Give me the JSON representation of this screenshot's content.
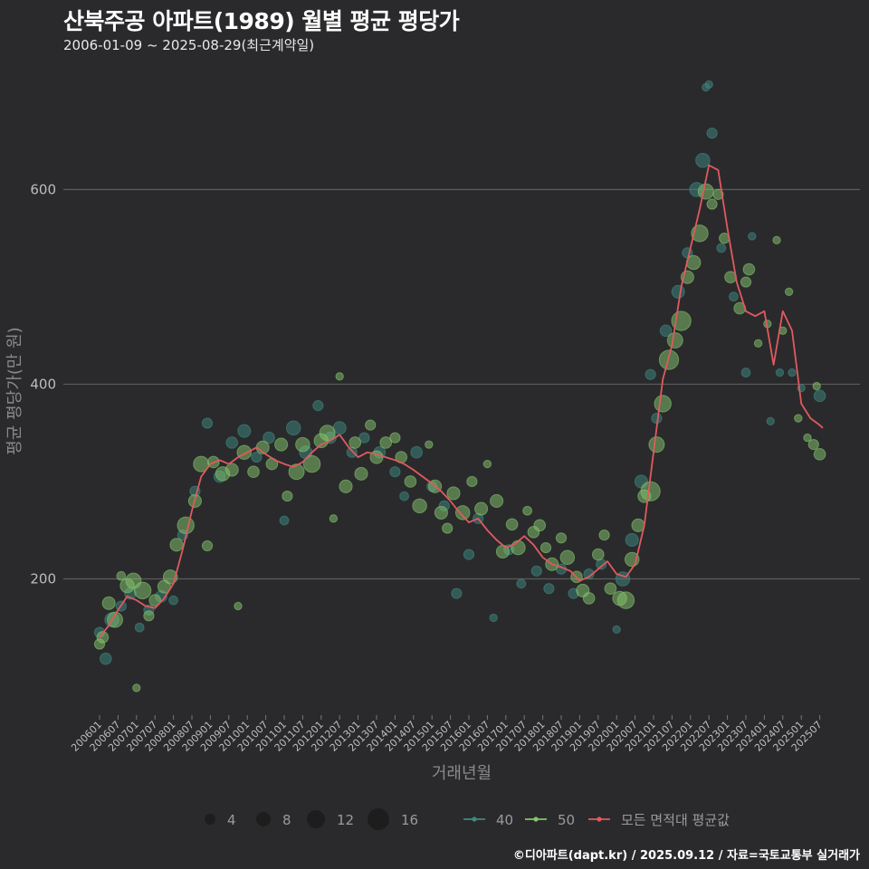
{
  "title": "산북주공 아파트(1989) 월별 평균 평당가",
  "subtitle": "2006-01-09 ~ 2025-08-29(최근계약일)",
  "credit": "©디아파트(dapt.kr) / 2025.09.12 / 자료=국토교통부 실거래가",
  "colors": {
    "background": "#2a2a2c",
    "grid": "#5c5c5c",
    "area40": "#3d8a82",
    "area50": "#86c56e",
    "avg_line": "#e05a5f"
  },
  "chart_data": {
    "type": "scatter+line",
    "xlabel": "거래년월",
    "ylabel": "평균 평당가(만 원)",
    "ylim": [
      60,
      725
    ],
    "yticks": [
      200,
      400,
      600
    ],
    "x_start": "2006-01",
    "x_end": "2025-08",
    "xticks": [
      "200601",
      "200607",
      "200701",
      "200707",
      "200801",
      "200807",
      "200901",
      "200907",
      "201001",
      "201007",
      "201101",
      "201107",
      "201201",
      "201207",
      "201301",
      "201307",
      "201401",
      "201407",
      "201501",
      "201507",
      "201601",
      "201607",
      "201701",
      "201707",
      "201801",
      "201807",
      "201901",
      "201907",
      "202001",
      "202007",
      "202101",
      "202107",
      "202201",
      "202207",
      "202301",
      "202307",
      "202401",
      "202407",
      "202501",
      "202507"
    ],
    "legend": {
      "size_title": "",
      "sizes": [
        4,
        8,
        12,
        16
      ],
      "area_items": [
        {
          "label": "40",
          "color": "#3d8a82"
        },
        {
          "label": "50",
          "color": "#86c56e"
        },
        {
          "label": "모든 면적대 평균값",
          "color": "#e05a5f"
        }
      ]
    },
    "avg_series": {
      "name": "모든 면적대 평균값",
      "x": [
        "2006-01",
        "2006-04",
        "2006-07",
        "2006-10",
        "2007-01",
        "2007-04",
        "2007-07",
        "2007-10",
        "2008-01",
        "2008-04",
        "2008-07",
        "2008-10",
        "2009-01",
        "2009-04",
        "2009-07",
        "2009-10",
        "2010-01",
        "2010-04",
        "2010-07",
        "2010-10",
        "2011-01",
        "2011-04",
        "2011-07",
        "2011-10",
        "2012-01",
        "2012-04",
        "2012-07",
        "2012-10",
        "2013-01",
        "2013-04",
        "2013-07",
        "2013-10",
        "2014-01",
        "2014-04",
        "2014-07",
        "2014-10",
        "2015-01",
        "2015-04",
        "2015-07",
        "2015-10",
        "2016-01",
        "2016-04",
        "2016-07",
        "2016-10",
        "2017-01",
        "2017-04",
        "2017-07",
        "2017-10",
        "2018-01",
        "2018-04",
        "2018-07",
        "2018-10",
        "2019-01",
        "2019-04",
        "2019-07",
        "2019-10",
        "2020-01",
        "2020-04",
        "2020-07",
        "2020-10",
        "2021-01",
        "2021-04",
        "2021-07",
        "2021-10",
        "2022-01",
        "2022-04",
        "2022-07",
        "2022-10",
        "2023-01",
        "2023-04",
        "2023-07",
        "2023-10",
        "2024-01",
        "2024-04",
        "2024-07",
        "2024-10",
        "2025-01",
        "2025-04",
        "2025-07",
        "2025-08"
      ],
      "values": [
        140,
        152,
        168,
        182,
        178,
        172,
        170,
        180,
        195,
        230,
        270,
        305,
        318,
        322,
        318,
        325,
        330,
        335,
        328,
        322,
        318,
        315,
        320,
        330,
        338,
        342,
        348,
        335,
        325,
        330,
        328,
        325,
        322,
        318,
        312,
        305,
        298,
        290,
        280,
        268,
        258,
        262,
        250,
        240,
        232,
        236,
        244,
        235,
        222,
        215,
        212,
        208,
        198,
        202,
        210,
        218,
        205,
        202,
        215,
        255,
        330,
        405,
        440,
        500,
        540,
        580,
        625,
        620,
        560,
        505,
        475,
        470,
        475,
        420,
        475,
        455,
        380,
        365,
        358,
        355
      ]
    },
    "size_scale": "number of transactions (4–16)",
    "points_area40": [
      {
        "x": "2006-01",
        "y": 145,
        "n": 5
      },
      {
        "x": "2006-03",
        "y": 118,
        "n": 6
      },
      {
        "x": "2006-05",
        "y": 158,
        "n": 8
      },
      {
        "x": "2006-08",
        "y": 172,
        "n": 5
      },
      {
        "x": "2006-11",
        "y": 185,
        "n": 6
      },
      {
        "x": "2007-02",
        "y": 150,
        "n": 4
      },
      {
        "x": "2007-05",
        "y": 168,
        "n": 5
      },
      {
        "x": "2007-09",
        "y": 182,
        "n": 6
      },
      {
        "x": "2008-01",
        "y": 178,
        "n": 4
      },
      {
        "x": "2008-04",
        "y": 245,
        "n": 5
      },
      {
        "x": "2008-08",
        "y": 290,
        "n": 5
      },
      {
        "x": "2008-12",
        "y": 360,
        "n": 5
      },
      {
        "x": "2009-04",
        "y": 305,
        "n": 6
      },
      {
        "x": "2009-08",
        "y": 340,
        "n": 6
      },
      {
        "x": "2009-12",
        "y": 352,
        "n": 7
      },
      {
        "x": "2010-04",
        "y": 325,
        "n": 5
      },
      {
        "x": "2010-08",
        "y": 345,
        "n": 6
      },
      {
        "x": "2011-01",
        "y": 260,
        "n": 4
      },
      {
        "x": "2011-04",
        "y": 355,
        "n": 8
      },
      {
        "x": "2011-08",
        "y": 330,
        "n": 7
      },
      {
        "x": "2011-12",
        "y": 378,
        "n": 5
      },
      {
        "x": "2012-04",
        "y": 345,
        "n": 6
      },
      {
        "x": "2012-07",
        "y": 355,
        "n": 7
      },
      {
        "x": "2012-11",
        "y": 330,
        "n": 5
      },
      {
        "x": "2013-03",
        "y": 345,
        "n": 5
      },
      {
        "x": "2013-08",
        "y": 330,
        "n": 6
      },
      {
        "x": "2014-01",
        "y": 310,
        "n": 5
      },
      {
        "x": "2014-04",
        "y": 285,
        "n": 4
      },
      {
        "x": "2014-08",
        "y": 330,
        "n": 6
      },
      {
        "x": "2015-01",
        "y": 295,
        "n": 5
      },
      {
        "x": "2015-05",
        "y": 275,
        "n": 5
      },
      {
        "x": "2015-09",
        "y": 185,
        "n": 5
      },
      {
        "x": "2016-01",
        "y": 225,
        "n": 5
      },
      {
        "x": "2016-04",
        "y": 262,
        "n": 5
      },
      {
        "x": "2016-09",
        "y": 160,
        "n": 3
      },
      {
        "x": "2017-02",
        "y": 230,
        "n": 5
      },
      {
        "x": "2017-06",
        "y": 195,
        "n": 4
      },
      {
        "x": "2017-11",
        "y": 208,
        "n": 5
      },
      {
        "x": "2018-03",
        "y": 190,
        "n": 5
      },
      {
        "x": "2018-07",
        "y": 210,
        "n": 5
      },
      {
        "x": "2018-11",
        "y": 185,
        "n": 5
      },
      {
        "x": "2019-04",
        "y": 205,
        "n": 5
      },
      {
        "x": "2019-08",
        "y": 215,
        "n": 5
      },
      {
        "x": "2020-01",
        "y": 148,
        "n": 3
      },
      {
        "x": "2020-03",
        "y": 200,
        "n": 8
      },
      {
        "x": "2020-06",
        "y": 240,
        "n": 7
      },
      {
        "x": "2020-09",
        "y": 300,
        "n": 7
      },
      {
        "x": "2020-12",
        "y": 410,
        "n": 5
      },
      {
        "x": "2021-02",
        "y": 365,
        "n": 5
      },
      {
        "x": "2021-05",
        "y": 455,
        "n": 6
      },
      {
        "x": "2021-09",
        "y": 495,
        "n": 7
      },
      {
        "x": "2021-12",
        "y": 535,
        "n": 5
      },
      {
        "x": "2022-03",
        "y": 600,
        "n": 8
      },
      {
        "x": "2022-05",
        "y": 630,
        "n": 8
      },
      {
        "x": "2022-06",
        "y": 705,
        "n": 3
      },
      {
        "x": "2022-07",
        "y": 708,
        "n": 3
      },
      {
        "x": "2022-08",
        "y": 658,
        "n": 5
      },
      {
        "x": "2022-11",
        "y": 540,
        "n": 4
      },
      {
        "x": "2023-03",
        "y": 490,
        "n": 4
      },
      {
        "x": "2023-07",
        "y": 412,
        "n": 4
      },
      {
        "x": "2023-09",
        "y": 552,
        "n": 3
      },
      {
        "x": "2024-03",
        "y": 362,
        "n": 3
      },
      {
        "x": "2024-06",
        "y": 412,
        "n": 3
      },
      {
        "x": "2024-10",
        "y": 412,
        "n": 3
      },
      {
        "x": "2025-01",
        "y": 396,
        "n": 3
      },
      {
        "x": "2025-07",
        "y": 388,
        "n": 6
      }
    ],
    "points_area50": [
      {
        "x": "2006-01",
        "y": 133,
        "n": 5
      },
      {
        "x": "2006-02",
        "y": 140,
        "n": 6
      },
      {
        "x": "2006-04",
        "y": 175,
        "n": 7
      },
      {
        "x": "2006-06",
        "y": 158,
        "n": 9
      },
      {
        "x": "2006-08",
        "y": 203,
        "n": 4
      },
      {
        "x": "2006-10",
        "y": 193,
        "n": 8
      },
      {
        "x": "2006-12",
        "y": 198,
        "n": 9
      },
      {
        "x": "2007-01",
        "y": 88,
        "n": 3
      },
      {
        "x": "2007-03",
        "y": 188,
        "n": 10
      },
      {
        "x": "2007-05",
        "y": 162,
        "n": 5
      },
      {
        "x": "2007-07",
        "y": 178,
        "n": 6
      },
      {
        "x": "2007-10",
        "y": 192,
        "n": 7
      },
      {
        "x": "2007-12",
        "y": 202,
        "n": 8
      },
      {
        "x": "2008-02",
        "y": 235,
        "n": 7
      },
      {
        "x": "2008-05",
        "y": 255,
        "n": 10
      },
      {
        "x": "2008-08",
        "y": 280,
        "n": 7
      },
      {
        "x": "2008-10",
        "y": 318,
        "n": 9
      },
      {
        "x": "2008-12",
        "y": 234,
        "n": 5
      },
      {
        "x": "2009-02",
        "y": 320,
        "n": 6
      },
      {
        "x": "2009-05",
        "y": 308,
        "n": 8
      },
      {
        "x": "2009-08",
        "y": 312,
        "n": 7
      },
      {
        "x": "2009-10",
        "y": 172,
        "n": 3
      },
      {
        "x": "2009-12",
        "y": 330,
        "n": 8
      },
      {
        "x": "2010-03",
        "y": 310,
        "n": 6
      },
      {
        "x": "2010-06",
        "y": 335,
        "n": 7
      },
      {
        "x": "2010-09",
        "y": 318,
        "n": 6
      },
      {
        "x": "2010-12",
        "y": 338,
        "n": 7
      },
      {
        "x": "2011-02",
        "y": 285,
        "n": 5
      },
      {
        "x": "2011-05",
        "y": 310,
        "n": 9
      },
      {
        "x": "2011-07",
        "y": 338,
        "n": 8
      },
      {
        "x": "2011-10",
        "y": 318,
        "n": 10
      },
      {
        "x": "2012-01",
        "y": 342,
        "n": 8
      },
      {
        "x": "2012-03",
        "y": 350,
        "n": 9
      },
      {
        "x": "2012-05",
        "y": 262,
        "n": 3
      },
      {
        "x": "2012-07",
        "y": 408,
        "n": 3
      },
      {
        "x": "2012-09",
        "y": 295,
        "n": 7
      },
      {
        "x": "2012-12",
        "y": 340,
        "n": 6
      },
      {
        "x": "2013-02",
        "y": 308,
        "n": 7
      },
      {
        "x": "2013-05",
        "y": 358,
        "n": 5
      },
      {
        "x": "2013-07",
        "y": 325,
        "n": 7
      },
      {
        "x": "2013-10",
        "y": 340,
        "n": 6
      },
      {
        "x": "2014-01",
        "y": 345,
        "n": 5
      },
      {
        "x": "2014-03",
        "y": 325,
        "n": 6
      },
      {
        "x": "2014-06",
        "y": 300,
        "n": 6
      },
      {
        "x": "2014-09",
        "y": 275,
        "n": 8
      },
      {
        "x": "2014-12",
        "y": 338,
        "n": 3
      },
      {
        "x": "2015-02",
        "y": 295,
        "n": 7
      },
      {
        "x": "2015-04",
        "y": 268,
        "n": 7
      },
      {
        "x": "2015-06",
        "y": 252,
        "n": 5
      },
      {
        "x": "2015-08",
        "y": 288,
        "n": 7
      },
      {
        "x": "2015-11",
        "y": 268,
        "n": 8
      },
      {
        "x": "2016-02",
        "y": 300,
        "n": 5
      },
      {
        "x": "2016-05",
        "y": 272,
        "n": 7
      },
      {
        "x": "2016-07",
        "y": 318,
        "n": 3
      },
      {
        "x": "2016-10",
        "y": 280,
        "n": 7
      },
      {
        "x": "2016-12",
        "y": 228,
        "n": 7
      },
      {
        "x": "2017-03",
        "y": 256,
        "n": 6
      },
      {
        "x": "2017-05",
        "y": 232,
        "n": 8
      },
      {
        "x": "2017-08",
        "y": 270,
        "n": 4
      },
      {
        "x": "2017-10",
        "y": 248,
        "n": 6
      },
      {
        "x": "2017-12",
        "y": 255,
        "n": 6
      },
      {
        "x": "2018-02",
        "y": 232,
        "n": 5
      },
      {
        "x": "2018-04",
        "y": 215,
        "n": 7
      },
      {
        "x": "2018-07",
        "y": 242,
        "n": 5
      },
      {
        "x": "2018-09",
        "y": 222,
        "n": 8
      },
      {
        "x": "2018-12",
        "y": 202,
        "n": 6
      },
      {
        "x": "2019-02",
        "y": 188,
        "n": 7
      },
      {
        "x": "2019-04",
        "y": 180,
        "n": 6
      },
      {
        "x": "2019-07",
        "y": 225,
        "n": 6
      },
      {
        "x": "2019-09",
        "y": 245,
        "n": 5
      },
      {
        "x": "2019-11",
        "y": 190,
        "n": 6
      },
      {
        "x": "2020-02",
        "y": 180,
        "n": 8
      },
      {
        "x": "2020-04",
        "y": 178,
        "n": 10
      },
      {
        "x": "2020-06",
        "y": 220,
        "n": 8
      },
      {
        "x": "2020-08",
        "y": 255,
        "n": 7
      },
      {
        "x": "2020-10",
        "y": 285,
        "n": 7
      },
      {
        "x": "2020-12",
        "y": 290,
        "n": 12
      },
      {
        "x": "2021-02",
        "y": 338,
        "n": 9
      },
      {
        "x": "2021-04",
        "y": 380,
        "n": 10
      },
      {
        "x": "2021-06",
        "y": 425,
        "n": 12
      },
      {
        "x": "2021-08",
        "y": 445,
        "n": 9
      },
      {
        "x": "2021-10",
        "y": 465,
        "n": 12
      },
      {
        "x": "2021-12",
        "y": 510,
        "n": 7
      },
      {
        "x": "2022-02",
        "y": 525,
        "n": 8
      },
      {
        "x": "2022-04",
        "y": 555,
        "n": 10
      },
      {
        "x": "2022-06",
        "y": 598,
        "n": 9
      },
      {
        "x": "2022-08",
        "y": 585,
        "n": 5
      },
      {
        "x": "2022-10",
        "y": 595,
        "n": 5
      },
      {
        "x": "2022-12",
        "y": 550,
        "n": 5
      },
      {
        "x": "2023-02",
        "y": 510,
        "n": 6
      },
      {
        "x": "2023-05",
        "y": 478,
        "n": 6
      },
      {
        "x": "2023-07",
        "y": 505,
        "n": 5
      },
      {
        "x": "2023-08",
        "y": 518,
        "n": 6
      },
      {
        "x": "2023-11",
        "y": 442,
        "n": 3
      },
      {
        "x": "2024-02",
        "y": 462,
        "n": 3
      },
      {
        "x": "2024-05",
        "y": 548,
        "n": 3
      },
      {
        "x": "2024-07",
        "y": 455,
        "n": 3
      },
      {
        "x": "2024-09",
        "y": 495,
        "n": 3
      },
      {
        "x": "2024-12",
        "y": 365,
        "n": 3
      },
      {
        "x": "2025-03",
        "y": 345,
        "n": 3
      },
      {
        "x": "2025-05",
        "y": 338,
        "n": 5
      },
      {
        "x": "2025-07",
        "y": 328,
        "n": 6
      },
      {
        "x": "2025-06",
        "y": 398,
        "n": 3
      }
    ]
  }
}
